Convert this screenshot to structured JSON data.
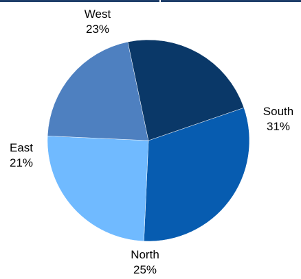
{
  "chart_data": {
    "type": "pie",
    "title": "",
    "slices": [
      {
        "name": "South",
        "value": 31,
        "value_label": "31%",
        "color": "#075cb0"
      },
      {
        "name": "North",
        "value": 25,
        "value_label": "25%",
        "color": "#70baff"
      },
      {
        "name": "East",
        "value": 21,
        "value_label": "21%",
        "color": "#4e80c0"
      },
      {
        "name": "West",
        "value": 23,
        "value_label": "23%",
        "color": "#0a3868"
      }
    ],
    "legend": "none",
    "labels": "outside"
  }
}
